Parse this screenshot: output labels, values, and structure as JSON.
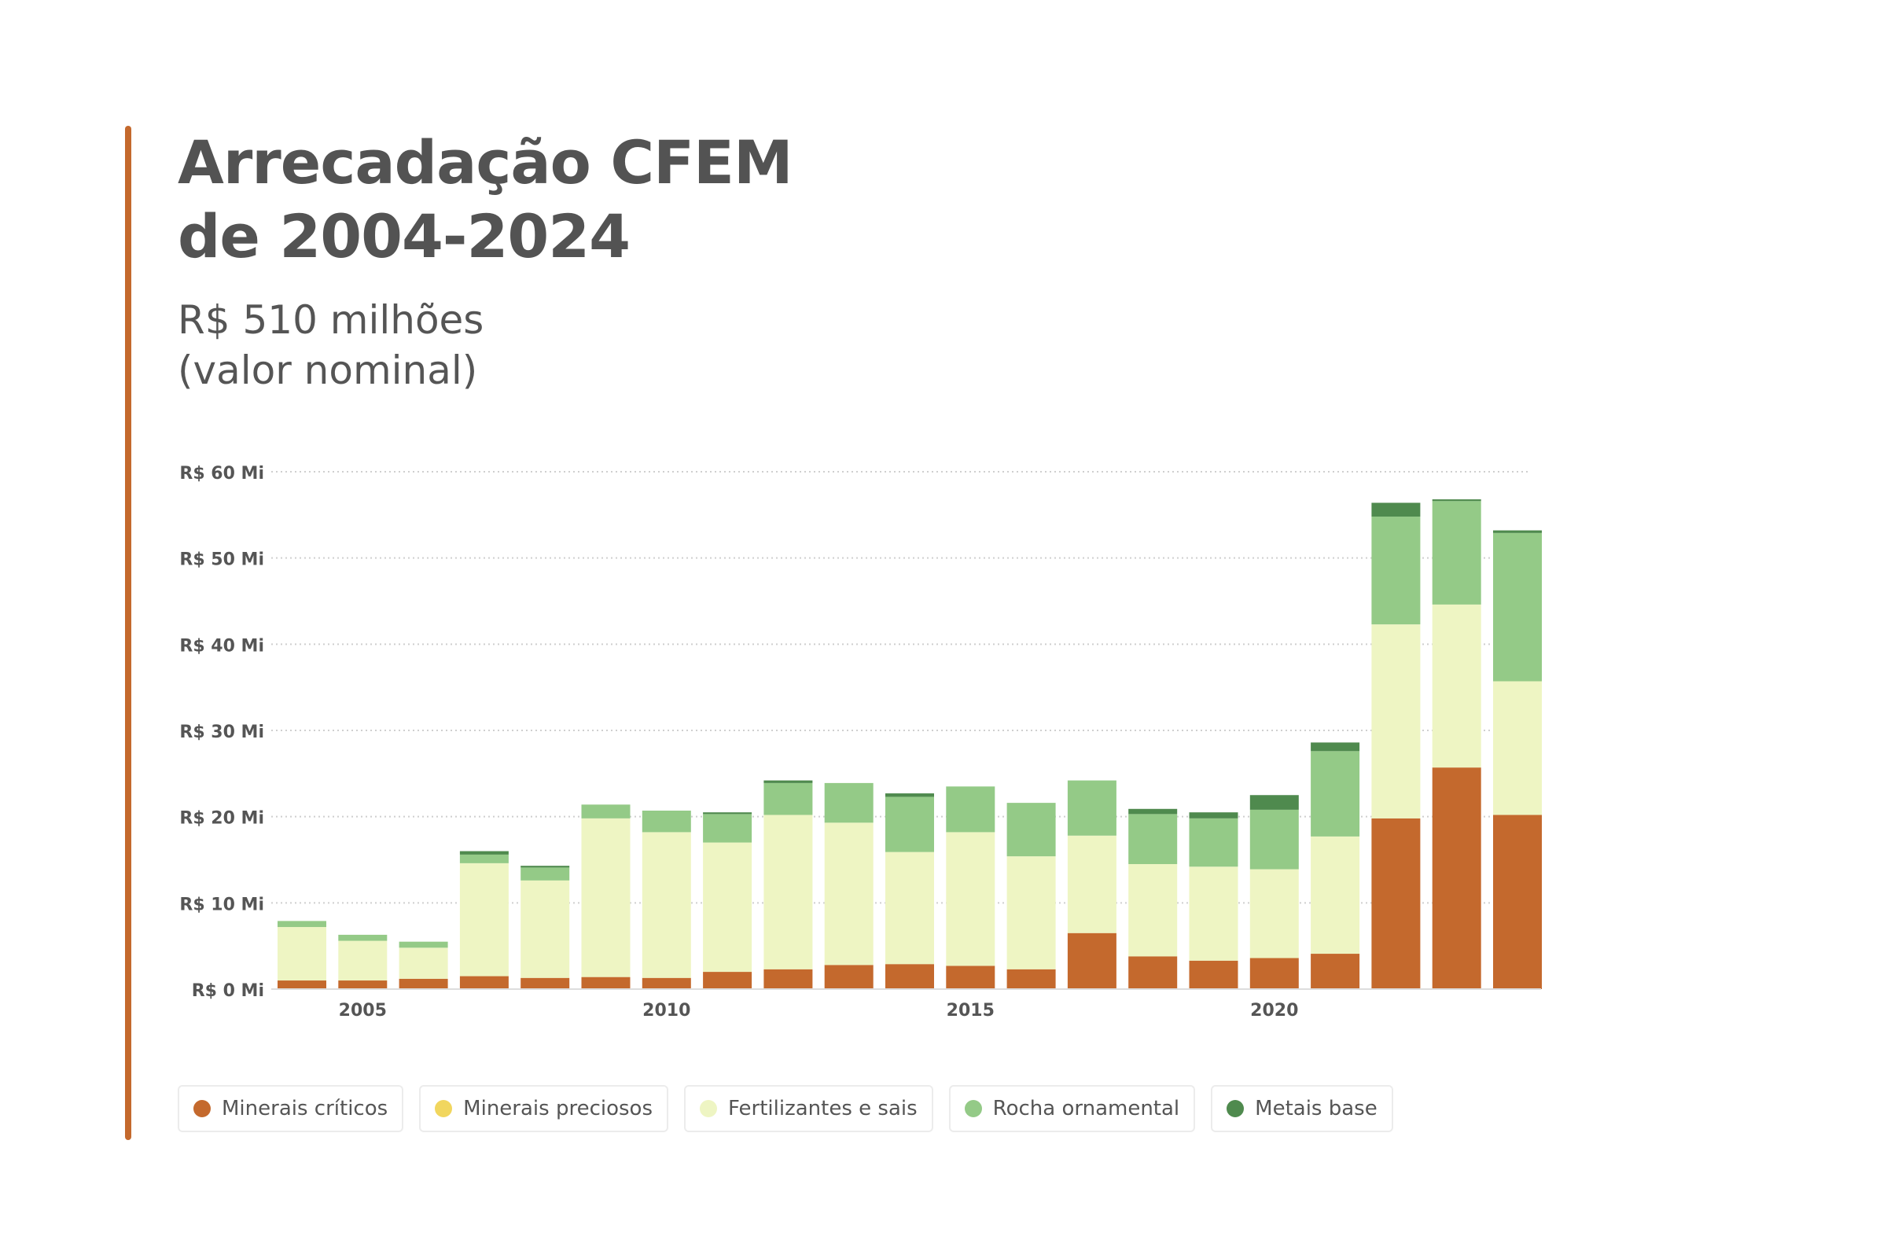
{
  "header": {
    "title_line1": "Arrecadação CFEM",
    "title_line2": "de 2004-2024",
    "subtitle_line1": "R$ 510 milhões",
    "subtitle_line2": "(valor nominal)",
    "accent_color": "#c4692d"
  },
  "chart_data": {
    "type": "bar",
    "stacked": true,
    "categories": [
      2004,
      2005,
      2006,
      2007,
      2008,
      2009,
      2010,
      2011,
      2012,
      2013,
      2014,
      2015,
      2016,
      2017,
      2018,
      2019,
      2020,
      2021,
      2022,
      2023,
      2024
    ],
    "x_ticks": [
      {
        "value": 2005,
        "label": "2005"
      },
      {
        "value": 2010,
        "label": "2010"
      },
      {
        "value": 2015,
        "label": "2015"
      },
      {
        "value": 2020,
        "label": "2020"
      }
    ],
    "y_ticks": [
      {
        "value": 0,
        "label": "R$ 0 Mi"
      },
      {
        "value": 10,
        "label": "R$ 10 Mi"
      },
      {
        "value": 20,
        "label": "R$ 20 Mi"
      },
      {
        "value": 30,
        "label": "R$ 30 Mi"
      },
      {
        "value": 40,
        "label": "R$ 40 Mi"
      },
      {
        "value": 50,
        "label": "R$ 50 Mi"
      },
      {
        "value": 60,
        "label": "R$ 60 Mi"
      }
    ],
    "ylim": [
      0,
      60
    ],
    "grid": true,
    "legend_position": "bottom",
    "series": [
      {
        "name": "Minerais críticos",
        "color": "#c4692d",
        "values": [
          1.0,
          1.0,
          1.2,
          1.5,
          1.3,
          1.4,
          1.3,
          2.0,
          2.3,
          2.8,
          2.9,
          2.7,
          2.3,
          6.5,
          3.8,
          3.3,
          3.6,
          4.1,
          19.8,
          25.7,
          20.2
        ]
      },
      {
        "name": "Minerais preciosos",
        "color": "#f1d65e",
        "values": [
          0,
          0,
          0,
          0,
          0,
          0,
          0,
          0,
          0,
          0,
          0,
          0,
          0,
          0,
          0,
          0,
          0,
          0,
          0,
          0,
          0
        ]
      },
      {
        "name": "Fertilizantes e sais",
        "color": "#eef5c3",
        "values": [
          6.2,
          4.6,
          3.6,
          13.1,
          11.3,
          18.4,
          16.9,
          15.0,
          17.9,
          16.5,
          13.0,
          15.5,
          13.1,
          11.3,
          10.7,
          10.9,
          10.3,
          13.6,
          22.5,
          18.9,
          15.5
        ]
      },
      {
        "name": "Rocha ornamental",
        "color": "#94ca87",
        "values": [
          0.7,
          0.7,
          0.7,
          1.0,
          1.5,
          1.6,
          2.5,
          3.3,
          3.7,
          4.6,
          6.4,
          5.3,
          6.2,
          6.4,
          5.8,
          5.6,
          6.9,
          9.9,
          12.5,
          12.0,
          17.2
        ]
      },
      {
        "name": "Metais base",
        "color": "#4f8a4e",
        "values": [
          0,
          0,
          0,
          0.4,
          0.2,
          0,
          0,
          0.2,
          0.3,
          0,
          0.4,
          0,
          0,
          0,
          0.6,
          0.7,
          1.7,
          1.0,
          1.6,
          0.2,
          0.3
        ]
      }
    ]
  }
}
